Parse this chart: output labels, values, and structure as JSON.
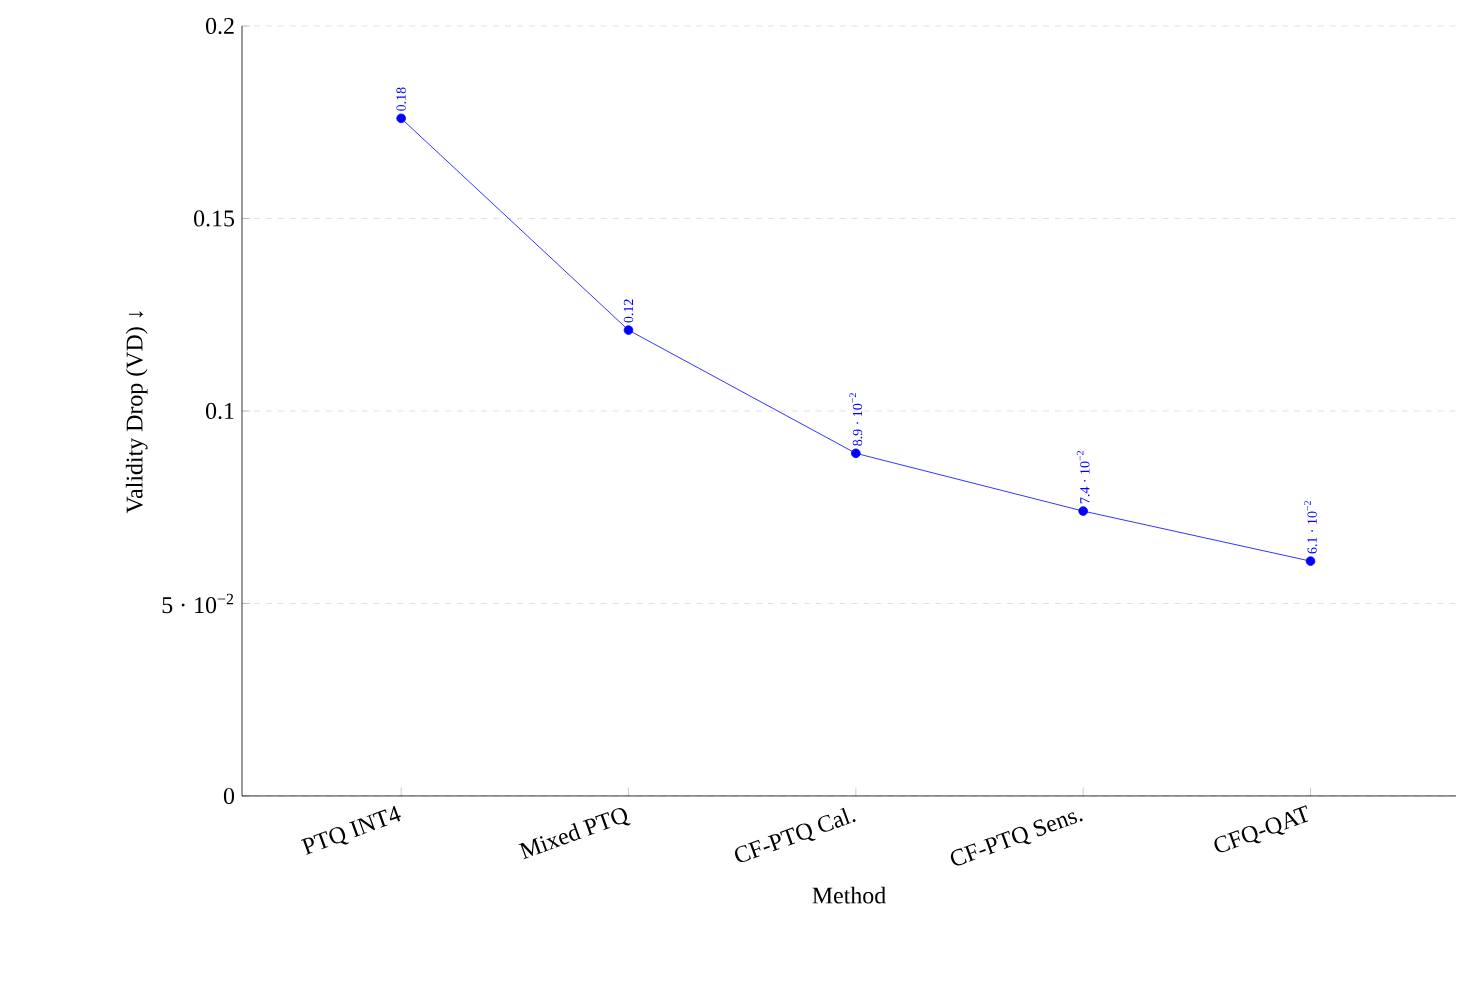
{
  "chart_data": {
    "type": "line",
    "xlabel": "Method",
    "ylabel": "Validity Drop (VD) ↓",
    "categories": [
      "PTQ INT4",
      "Mixed PTQ",
      "CF-PTQ Cal.",
      "CF-PTQ Sens.",
      "CFQ-QAT"
    ],
    "series": [
      {
        "color": "#0000ff",
        "values": [
          0.176,
          0.121,
          0.089,
          0.074,
          0.061
        ],
        "value_labels": [
          "0.18",
          "0.12",
          "8.9 · 10$^{−2}$",
          "7.4 · 10$^{−2}$",
          "6.1 · 10$^{−2}$"
        ]
      }
    ],
    "ylim": [
      0,
      0.2
    ],
    "yticks": [
      0,
      {
        "value": 0.05,
        "label": "5 · 10$^{−2}$"
      },
      0.1,
      0.15,
      0.2
    ],
    "grid": "y",
    "marker": "circle",
    "line_style": "solid"
  }
}
